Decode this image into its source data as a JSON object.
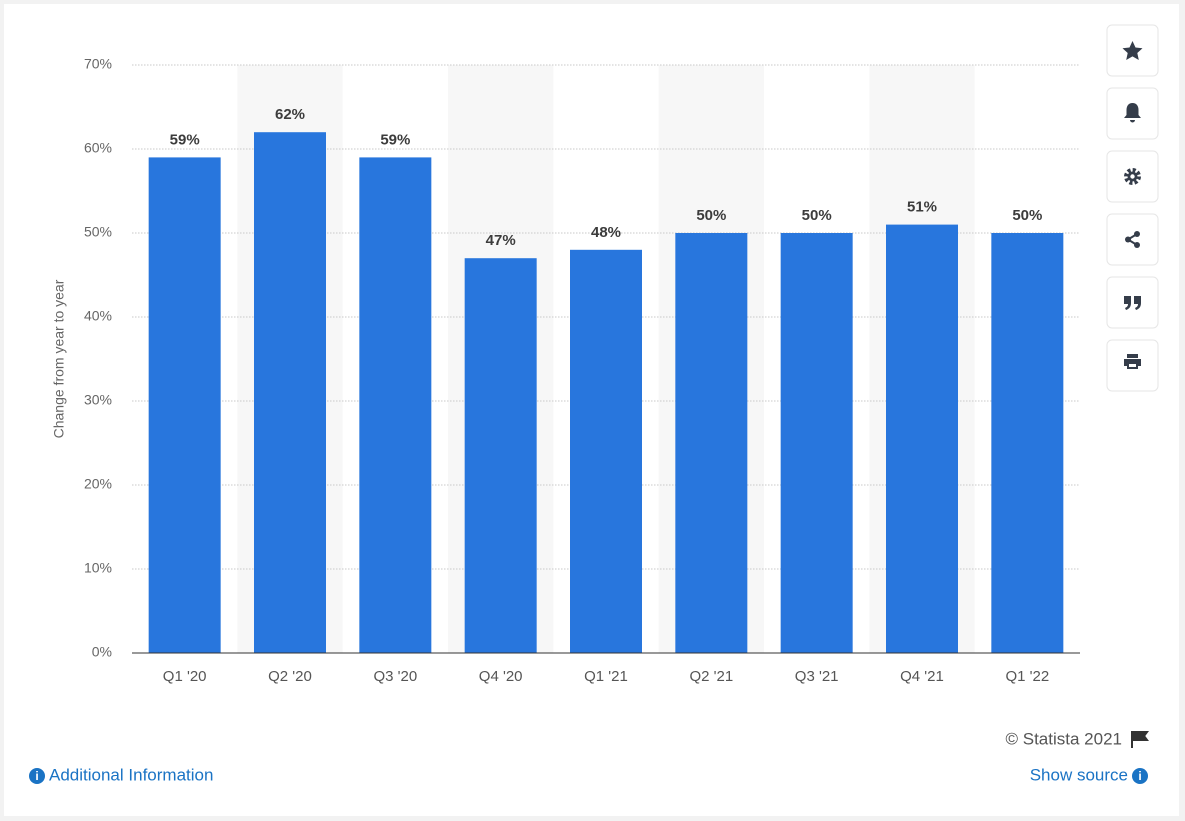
{
  "chart_data": {
    "type": "bar",
    "y_label": "Change from year to year",
    "categories": [
      "Q1 '20",
      "Q2 '20",
      "Q3 '20",
      "Q4 '20",
      "Q1 '21",
      "Q2 '21",
      "Q3 '21",
      "Q4 '21",
      "Q1 '22"
    ],
    "values": [
      59,
      62,
      59,
      47,
      48,
      50,
      50,
      51,
      50
    ],
    "value_labels": [
      "59%",
      "62%",
      "59%",
      "47%",
      "48%",
      "50%",
      "50%",
      "51%",
      "50%"
    ],
    "color": "#2876dd",
    "ylim": [
      0,
      70
    ],
    "yticks": [
      {
        "value": 0,
        "label": "0%"
      },
      {
        "value": 10,
        "label": "10%"
      },
      {
        "value": 20,
        "label": "20%"
      },
      {
        "value": 30,
        "label": "30%"
      },
      {
        "value": 40,
        "label": "40%"
      },
      {
        "value": 50,
        "label": "50%"
      },
      {
        "value": 60,
        "label": "60%"
      },
      {
        "value": 70,
        "label": "70%"
      }
    ],
    "grid": true
  },
  "footer": {
    "copyright": "© Statista 2021",
    "additional_info": "Additional Information",
    "show_source": "Show source"
  }
}
